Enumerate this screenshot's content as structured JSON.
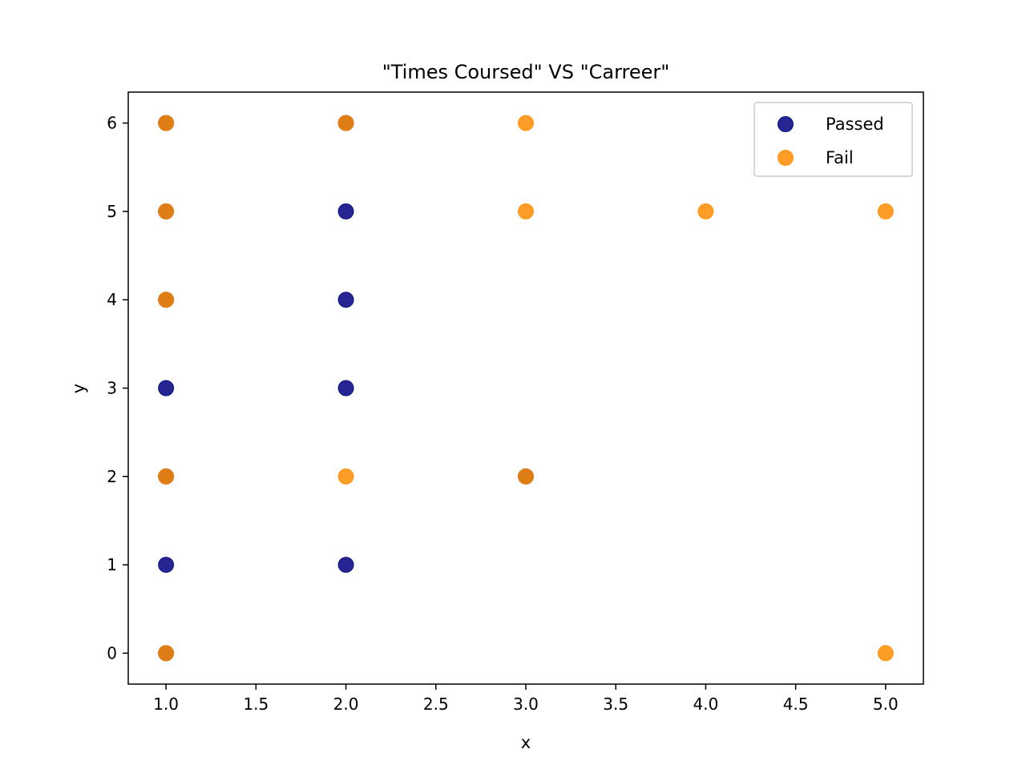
{
  "chart_data": {
    "type": "scatter",
    "title": "\"Times Coursed\" VS \"Carreer\"",
    "xlabel": "x",
    "ylabel": "y",
    "xlim": [
      0.79,
      5.21
    ],
    "ylim": [
      -0.35,
      6.35
    ],
    "xticks": [
      "1.0",
      "1.5",
      "2.0",
      "2.5",
      "3.0",
      "3.5",
      "4.0",
      "4.5",
      "5.0"
    ],
    "yticks": [
      "0",
      "1",
      "2",
      "3",
      "4",
      "5",
      "6"
    ],
    "grid": false,
    "legend_position": "top-right",
    "series": [
      {
        "name": "Passed",
        "color": "#000080",
        "alpha": 0.85,
        "points": [
          [
            1,
            6
          ],
          [
            1,
            5
          ],
          [
            1,
            4
          ],
          [
            1,
            3
          ],
          [
            1,
            2
          ],
          [
            1,
            1
          ],
          [
            1,
            0
          ],
          [
            2,
            6
          ],
          [
            2,
            5
          ],
          [
            2,
            4
          ],
          [
            2,
            3
          ],
          [
            2,
            1
          ],
          [
            3,
            2
          ]
        ]
      },
      {
        "name": "Fail",
        "color": "#ff8c00",
        "alpha": 0.85,
        "points": [
          [
            1,
            6
          ],
          [
            1,
            5
          ],
          [
            1,
            4
          ],
          [
            1,
            2
          ],
          [
            1,
            0
          ],
          [
            2,
            6
          ],
          [
            2,
            2
          ],
          [
            3,
            6
          ],
          [
            3,
            5
          ],
          [
            3,
            2
          ],
          [
            4,
            5
          ],
          [
            5,
            5
          ],
          [
            5,
            0
          ]
        ]
      }
    ]
  }
}
